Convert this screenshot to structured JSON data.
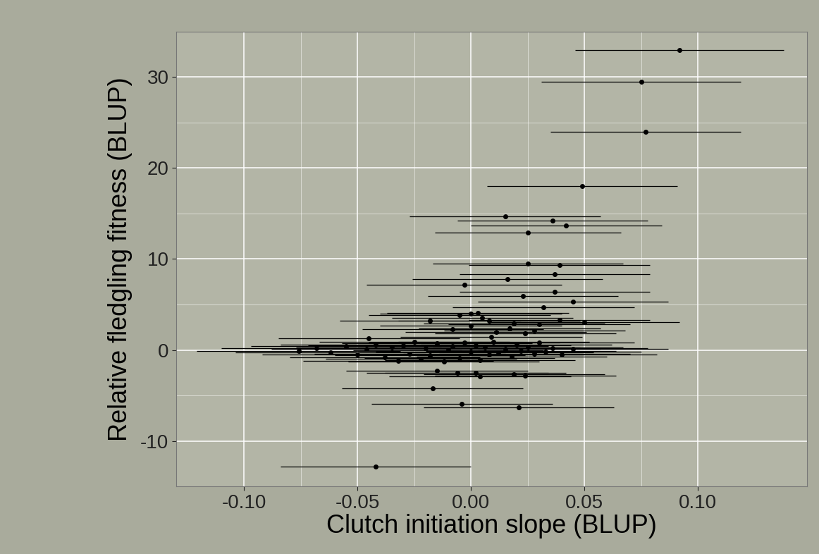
{
  "chart_data": {
    "type": "scatter",
    "x_label": "Clutch initiation slope (BLUP)",
    "y_label": "Relative fledgling fitness (BLUP)",
    "x": [
      0.092,
      0.075,
      0.077,
      0.049,
      0.015,
      0.036,
      0.042,
      0.025,
      0.025,
      0.039,
      0.037,
      0.016,
      -0.003,
      0.037,
      0.023,
      0.045,
      0.032,
      0.0,
      0.003,
      -0.005,
      0.005,
      0.008,
      -0.018,
      0.039,
      0.05,
      0.019,
      0.03,
      0.0,
      -0.008,
      0.017,
      0.028,
      0.011,
      0.024,
      0.009,
      -0.045,
      -0.015,
      -0.006,
      0.002,
      0.004,
      0.019,
      0.024,
      -0.017,
      -0.004,
      0.021,
      -0.042,
      -0.076,
      -0.068,
      -0.062,
      -0.055,
      -0.05,
      -0.046,
      -0.042,
      -0.038,
      -0.035,
      -0.032,
      -0.03,
      -0.027,
      -0.025,
      -0.022,
      -0.02,
      -0.018,
      -0.015,
      -0.012,
      -0.01,
      -0.008,
      -0.005,
      -0.003,
      0.0,
      0.002,
      0.004,
      0.006,
      0.008,
      0.01,
      0.012,
      0.015,
      0.018,
      0.02,
      0.022,
      0.025,
      0.028,
      0.03,
      0.033,
      0.036,
      0.04,
      0.045
    ],
    "y": [
      33.0,
      29.5,
      24.0,
      18.0,
      14.7,
      14.2,
      13.7,
      12.9,
      9.5,
      9.3,
      8.3,
      7.8,
      7.2,
      6.4,
      5.9,
      5.3,
      4.7,
      4.0,
      4.1,
      3.8,
      3.5,
      3.2,
      3.2,
      3.3,
      3.1,
      2.9,
      2.8,
      2.7,
      2.3,
      2.4,
      2.1,
      2.0,
      1.8,
      1.4,
      1.3,
      -2.3,
      -2.5,
      -2.5,
      -2.9,
      -2.7,
      -2.8,
      -4.2,
      -5.9,
      -6.3,
      -12.8,
      -0.1,
      0.2,
      -0.3,
      0.4,
      -0.5,
      0.1,
      0.6,
      -0.8,
      0.3,
      -1.2,
      0.5,
      -0.4,
      0.9,
      -1.0,
      0.2,
      -0.6,
      0.7,
      -1.3,
      0.0,
      0.4,
      -0.9,
      0.8,
      -0.2,
      0.5,
      -1.1,
      0.3,
      -0.5,
      0.9,
      -0.3,
      0.1,
      -0.7,
      0.6,
      -0.1,
      0.3,
      -0.4,
      0.8,
      -0.2,
      0.2,
      -0.5,
      0.1
    ],
    "xerr": [
      0.046,
      0.044,
      0.042,
      0.042,
      0.042,
      0.042,
      0.042,
      0.041,
      0.042,
      0.04,
      0.042,
      0.042,
      0.043,
      0.042,
      0.042,
      0.042,
      0.04,
      0.04,
      0.04,
      0.04,
      0.04,
      0.04,
      0.04,
      0.04,
      0.042,
      0.04,
      0.04,
      0.04,
      0.04,
      0.04,
      0.04,
      0.04,
      0.04,
      0.04,
      0.04,
      0.04,
      0.04,
      0.04,
      0.04,
      0.04,
      0.04,
      0.04,
      0.04,
      0.042,
      0.042,
      0.045,
      0.042,
      0.042,
      0.042,
      0.042,
      0.042,
      0.042,
      0.042,
      0.042,
      0.042,
      0.042,
      0.042,
      0.042,
      0.042,
      0.042,
      0.042,
      0.042,
      0.042,
      0.042,
      0.042,
      0.042,
      0.042,
      0.042,
      0.042,
      0.042,
      0.042,
      0.042,
      0.042,
      0.042,
      0.042,
      0.042,
      0.042,
      0.042,
      0.042,
      0.042,
      0.042,
      0.042,
      0.042,
      0.042,
      0.042
    ],
    "color": "#000000",
    "marker": "o",
    "xlim": [
      -0.13,
      0.148
    ],
    "ylim": [
      -15,
      35
    ],
    "xticks": [
      {
        "value": -0.1,
        "label": "-0.10"
      },
      -0.05,
      {
        "value": 0.0,
        "label": "0.00"
      },
      0.05,
      {
        "value": 0.1,
        "label": "0.10"
      }
    ],
    "yticks": [
      -10,
      0,
      10,
      20,
      30
    ],
    "grid": true
  }
}
